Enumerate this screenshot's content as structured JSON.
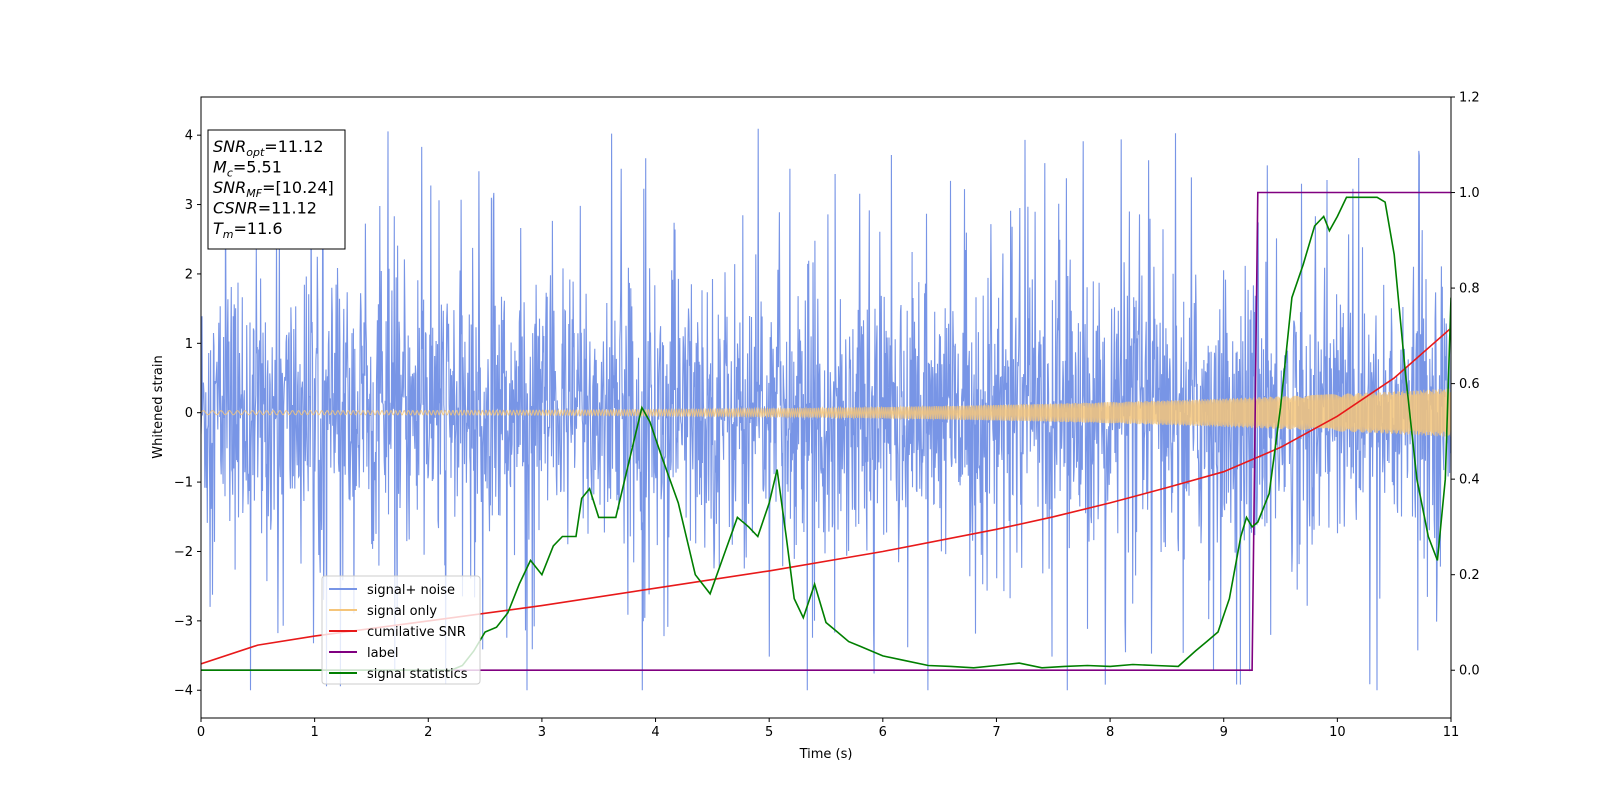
{
  "chart_data": {
    "type": "line",
    "xlabel": "Time (s)",
    "ylabel": "Whitened strain",
    "xlim": [
      0,
      11
    ],
    "ylim": [
      -4.4,
      4.55
    ],
    "y2lim": [
      -0.1,
      1.2
    ],
    "x_ticks": [
      0,
      1,
      2,
      3,
      4,
      5,
      6,
      7,
      8,
      9,
      10,
      11
    ],
    "y_ticks": [
      -4,
      -3,
      -2,
      -1,
      0,
      1,
      2,
      3,
      4
    ],
    "y2_ticks": [
      0.0,
      0.2,
      0.4,
      0.6,
      0.8,
      1.0,
      1.2
    ],
    "legend_position": "lower-left",
    "info_box": {
      "lines": [
        {
          "base": "SNR",
          "sub": "opt",
          "value": "=11.12"
        },
        {
          "base": "M",
          "sub": "c",
          "value": "=5.51"
        },
        {
          "base": "SNR",
          "sub": "MF",
          "value": "=[10.24]"
        },
        {
          "base": "CSNR",
          "sub": "",
          "value": "=11.12"
        },
        {
          "base": "T",
          "sub": "m",
          "value": "=11.6"
        }
      ]
    },
    "series": [
      {
        "name": "signal+ noise",
        "color": "#7895e6",
        "axis": "left",
        "kind": "noise_band",
        "typical_range": [
          -2.0,
          2.0
        ],
        "extreme_range": [
          -4.0,
          4.15
        ]
      },
      {
        "name": "signal only",
        "color": "#f5c57a",
        "axis": "left",
        "kind": "chirp",
        "amplitude_start": 0.03,
        "amplitude_end": 0.35
      },
      {
        "name": "cumilative SNR",
        "color": "#e8191a",
        "axis": "left",
        "x": [
          0,
          0.5,
          1,
          2,
          3,
          4,
          5,
          6,
          7,
          7.5,
          8,
          8.5,
          9,
          9.5,
          10,
          10.5,
          11
        ],
        "values": [
          -3.62,
          -3.35,
          -3.22,
          -3.0,
          -2.78,
          -2.53,
          -2.28,
          -2.0,
          -1.68,
          -1.5,
          -1.3,
          -1.08,
          -0.85,
          -0.5,
          -0.05,
          0.5,
          1.22
        ]
      },
      {
        "name": "label",
        "color": "#800080",
        "axis": "right",
        "x": [
          0,
          9.25,
          9.3,
          11
        ],
        "values": [
          0.0,
          0.0,
          1.0,
          1.0
        ]
      },
      {
        "name": "signal statistics",
        "color": "#007f00",
        "axis": "right",
        "x": [
          0,
          2.2,
          2.3,
          2.4,
          2.5,
          2.6,
          2.7,
          2.8,
          2.9,
          3.0,
          3.1,
          3.18,
          3.3,
          3.35,
          3.42,
          3.5,
          3.65,
          3.78,
          3.88,
          3.95,
          4.05,
          4.2,
          4.35,
          4.48,
          4.6,
          4.72,
          4.82,
          4.9,
          5.0,
          5.07,
          5.15,
          5.22,
          5.3,
          5.4,
          5.5,
          5.6,
          5.7,
          5.8,
          6.0,
          6.2,
          6.4,
          6.6,
          6.8,
          7.0,
          7.2,
          7.4,
          7.6,
          7.8,
          8.0,
          8.2,
          8.4,
          8.6,
          8.75,
          8.85,
          8.95,
          9.05,
          9.15,
          9.2,
          9.25,
          9.3,
          9.4,
          9.5,
          9.6,
          9.7,
          9.8,
          9.88,
          9.93,
          10.0,
          10.08,
          10.15,
          10.25,
          10.35,
          10.42,
          10.5,
          10.6,
          10.7,
          10.8,
          10.88,
          10.95,
          11.0
        ],
        "values": [
          0.0,
          0.0,
          0.01,
          0.04,
          0.08,
          0.09,
          0.12,
          0.18,
          0.23,
          0.2,
          0.26,
          0.28,
          0.28,
          0.36,
          0.38,
          0.32,
          0.32,
          0.45,
          0.55,
          0.52,
          0.45,
          0.35,
          0.2,
          0.16,
          0.24,
          0.32,
          0.3,
          0.28,
          0.35,
          0.42,
          0.28,
          0.15,
          0.11,
          0.18,
          0.1,
          0.08,
          0.06,
          0.05,
          0.03,
          0.02,
          0.01,
          0.008,
          0.005,
          0.01,
          0.015,
          0.005,
          0.008,
          0.01,
          0.008,
          0.012,
          0.01,
          0.008,
          0.04,
          0.06,
          0.08,
          0.15,
          0.28,
          0.32,
          0.3,
          0.31,
          0.37,
          0.55,
          0.78,
          0.85,
          0.93,
          0.95,
          0.92,
          0.95,
          0.99,
          0.99,
          0.99,
          0.99,
          0.98,
          0.87,
          0.62,
          0.4,
          0.28,
          0.23,
          0.4,
          0.78
        ]
      }
    ]
  }
}
